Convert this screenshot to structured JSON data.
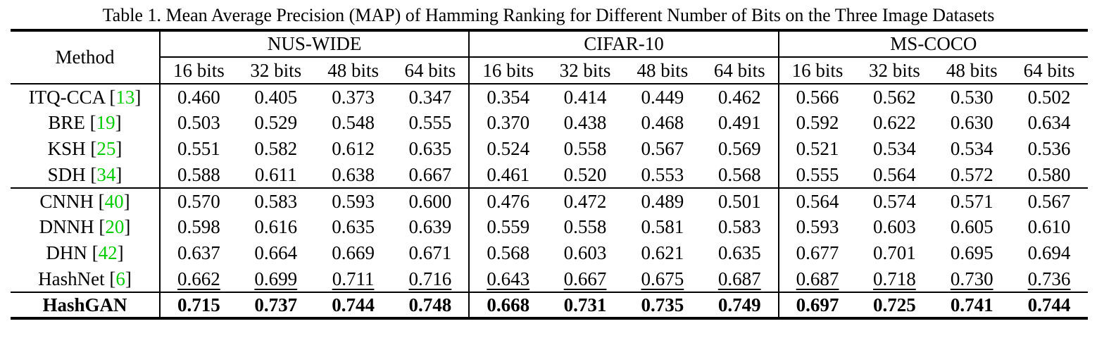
{
  "page": {
    "title": "Table 1. Mean Average Precision (MAP) of Hamming Ranking for Different Number of Bits on the Three Image Datasets"
  },
  "colors": {
    "background": "#ffffff",
    "text": "#000000",
    "rule": "#000000",
    "citation_green": "#00cc00"
  },
  "table": {
    "method_header": "Method",
    "datasets": [
      "NUS-WIDE",
      "CIFAR-10",
      "MS-COCO"
    ],
    "bit_labels": [
      "16 bits",
      "32 bits",
      "48 bits",
      "64 bits"
    ],
    "rows": [
      {
        "method": "ITQ-CCA",
        "citation": "13",
        "emphasis": "normal",
        "separator_above": false,
        "values": [
          "0.460",
          "0.405",
          "0.373",
          "0.347",
          "0.354",
          "0.414",
          "0.449",
          "0.462",
          "0.566",
          "0.562",
          "0.530",
          "0.502"
        ]
      },
      {
        "method": "BRE",
        "citation": "19",
        "emphasis": "normal",
        "separator_above": false,
        "values": [
          "0.503",
          "0.529",
          "0.548",
          "0.555",
          "0.370",
          "0.438",
          "0.468",
          "0.491",
          "0.592",
          "0.622",
          "0.630",
          "0.634"
        ]
      },
      {
        "method": "KSH",
        "citation": "25",
        "emphasis": "normal",
        "separator_above": false,
        "values": [
          "0.551",
          "0.582",
          "0.612",
          "0.635",
          "0.524",
          "0.558",
          "0.567",
          "0.569",
          "0.521",
          "0.534",
          "0.534",
          "0.536"
        ]
      },
      {
        "method": "SDH",
        "citation": "34",
        "emphasis": "normal",
        "separator_above": false,
        "values": [
          "0.588",
          "0.611",
          "0.638",
          "0.667",
          "0.461",
          "0.520",
          "0.553",
          "0.568",
          "0.555",
          "0.564",
          "0.572",
          "0.580"
        ]
      },
      {
        "method": "CNNH",
        "citation": "40",
        "emphasis": "normal",
        "separator_above": true,
        "values": [
          "0.570",
          "0.583",
          "0.593",
          "0.600",
          "0.476",
          "0.472",
          "0.489",
          "0.501",
          "0.564",
          "0.574",
          "0.571",
          "0.567"
        ]
      },
      {
        "method": "DNNH",
        "citation": "20",
        "emphasis": "normal",
        "separator_above": false,
        "values": [
          "0.598",
          "0.616",
          "0.635",
          "0.639",
          "0.559",
          "0.558",
          "0.581",
          "0.583",
          "0.593",
          "0.603",
          "0.605",
          "0.610"
        ]
      },
      {
        "method": "DHN",
        "citation": "42",
        "emphasis": "normal",
        "separator_above": false,
        "values": [
          "0.637",
          "0.664",
          "0.669",
          "0.671",
          "0.568",
          "0.603",
          "0.621",
          "0.635",
          "0.677",
          "0.701",
          "0.695",
          "0.694"
        ]
      },
      {
        "method": "HashNet",
        "citation": "6",
        "emphasis": "underline",
        "separator_above": false,
        "values": [
          "0.662",
          "0.699",
          "0.711",
          "0.716",
          "0.643",
          "0.667",
          "0.675",
          "0.687",
          "0.687",
          "0.718",
          "0.730",
          "0.736"
        ]
      },
      {
        "method": "HashGAN",
        "citation": null,
        "emphasis": "bold",
        "separator_above": true,
        "values": [
          "0.715",
          "0.737",
          "0.744",
          "0.748",
          "0.668",
          "0.731",
          "0.735",
          "0.749",
          "0.697",
          "0.725",
          "0.741",
          "0.744"
        ]
      }
    ]
  },
  "chart_data": {
    "type": "table",
    "title": "Table 1. Mean Average Precision (MAP) of Hamming Ranking for Different Number of Bits on the Three Image Datasets",
    "column_groups": [
      {
        "label": "NUS-WIDE",
        "span": 4
      },
      {
        "label": "CIFAR-10",
        "span": 4
      },
      {
        "label": "MS-COCO",
        "span": 4
      }
    ],
    "columns": [
      "Method",
      "16 bits",
      "32 bits",
      "48 bits",
      "64 bits",
      "16 bits",
      "32 bits",
      "48 bits",
      "64 bits",
      "16 bits",
      "32 bits",
      "48 bits",
      "64 bits"
    ],
    "rows": [
      [
        "ITQ-CCA [13]",
        0.46,
        0.405,
        0.373,
        0.347,
        0.354,
        0.414,
        0.449,
        0.462,
        0.566,
        0.562,
        0.53,
        0.502
      ],
      [
        "BRE [19]",
        0.503,
        0.529,
        0.548,
        0.555,
        0.37,
        0.438,
        0.468,
        0.491,
        0.592,
        0.622,
        0.63,
        0.634
      ],
      [
        "KSH [25]",
        0.551,
        0.582,
        0.612,
        0.635,
        0.524,
        0.558,
        0.567,
        0.569,
        0.521,
        0.534,
        0.534,
        0.536
      ],
      [
        "SDH [34]",
        0.588,
        0.611,
        0.638,
        0.667,
        0.461,
        0.52,
        0.553,
        0.568,
        0.555,
        0.564,
        0.572,
        0.58
      ],
      [
        "CNNH [40]",
        0.57,
        0.583,
        0.593,
        0.6,
        0.476,
        0.472,
        0.489,
        0.501,
        0.564,
        0.574,
        0.571,
        0.567
      ],
      [
        "DNNH [20]",
        0.598,
        0.616,
        0.635,
        0.639,
        0.559,
        0.558,
        0.581,
        0.583,
        0.593,
        0.603,
        0.605,
        0.61
      ],
      [
        "DHN [42]",
        0.637,
        0.664,
        0.669,
        0.671,
        0.568,
        0.603,
        0.621,
        0.635,
        0.677,
        0.701,
        0.695,
        0.694
      ],
      [
        "HashNet [6]",
        0.662,
        0.699,
        0.711,
        0.716,
        0.643,
        0.667,
        0.675,
        0.687,
        0.687,
        0.718,
        0.73,
        0.736
      ],
      [
        "HashGAN",
        0.715,
        0.737,
        0.744,
        0.748,
        0.668,
        0.731,
        0.735,
        0.749,
        0.697,
        0.725,
        0.741,
        0.744
      ]
    ],
    "notes": {
      "underlined_row": "HashNet [6]",
      "bold_row": "HashGAN"
    }
  }
}
